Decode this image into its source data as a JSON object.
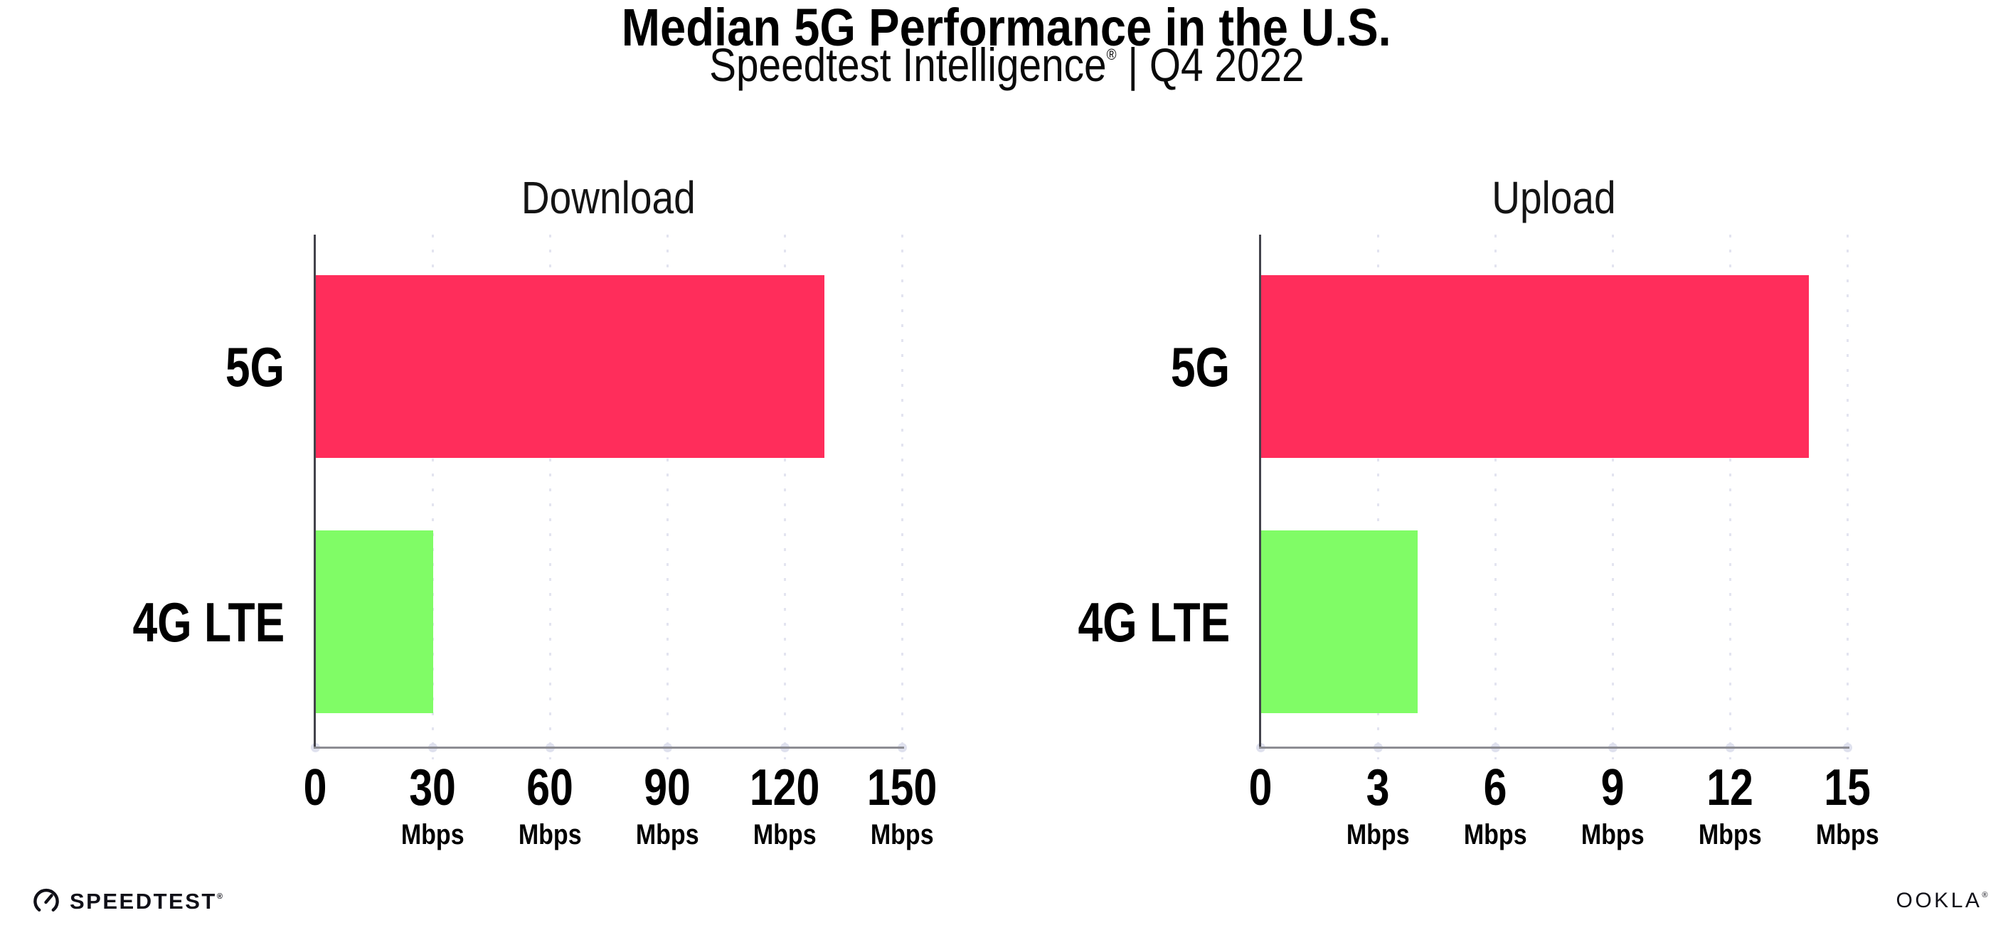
{
  "header": {
    "title": "Median 5G Performance in the U.S.",
    "subtitle_brand": "Speedtest Intelligence",
    "subtitle_reg": "®",
    "subtitle_rest": " | Q4 2022"
  },
  "chart_data": [
    {
      "type": "bar",
      "orientation": "horizontal",
      "title": "Download",
      "categories": [
        "5G",
        "4G LTE"
      ],
      "values": [
        130,
        30
      ],
      "unit": "Mbps",
      "xlabel": "",
      "ylabel": "",
      "xlim": [
        0,
        150
      ],
      "ticks": [
        0,
        30,
        60,
        90,
        120,
        150
      ],
      "bar_colors": [
        "#ff2d5b",
        "#80fc66"
      ],
      "grid": "dotted-vertical",
      "legend_position": "none"
    },
    {
      "type": "bar",
      "orientation": "horizontal",
      "title": "Upload",
      "categories": [
        "5G",
        "4G LTE"
      ],
      "values": [
        14,
        4
      ],
      "unit": "Mbps",
      "xlabel": "",
      "ylabel": "",
      "xlim": [
        0,
        15
      ],
      "ticks": [
        0,
        3,
        6,
        9,
        12,
        15
      ],
      "bar_colors": [
        "#ff2d5b",
        "#80fc66"
      ],
      "grid": "dotted-vertical",
      "legend_position": "none"
    }
  ],
  "colors": {
    "bar_5g": "#ff2d5b",
    "bar_4g_lte": "#80fc66",
    "gridline": "#e3e4f0",
    "axis_vertical": "#43434b",
    "axis_baseline": "#8d8d93",
    "text": "#000000",
    "background": "#ffffff"
  },
  "footer": {
    "speedtest": "SPEEDTEST",
    "speedtest_reg": "®",
    "ookla": "OOKLA",
    "ookla_reg": "®"
  }
}
